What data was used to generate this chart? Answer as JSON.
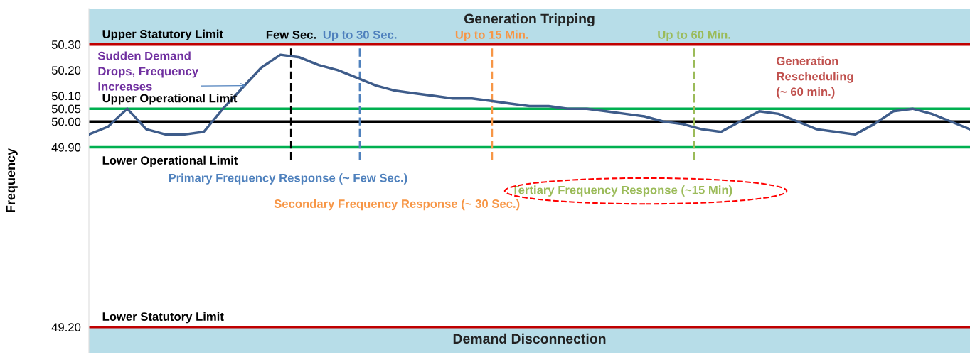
{
  "chart_data": {
    "type": "line",
    "ylabel": "Frequency",
    "categories": [
      null,
      null,
      null,
      null,
      null,
      null,
      null,
      null,
      null,
      null,
      null,
      null,
      null,
      null,
      null,
      null,
      null,
      null,
      null,
      null,
      null,
      null,
      null,
      null,
      null,
      null,
      null,
      null,
      null,
      null,
      null,
      null,
      null,
      null,
      null,
      null,
      null,
      null,
      null,
      null,
      null,
      null,
      null,
      null,
      null,
      null,
      null
    ],
    "series": [
      {
        "color": "#3e5c8a",
        "values": [
          49.95,
          49.98,
          50.05,
          49.97,
          49.95,
          49.95,
          49.96,
          50.05,
          50.13,
          50.21,
          50.26,
          50.25,
          50.22,
          50.2,
          50.17,
          50.14,
          50.12,
          50.11,
          50.1,
          50.09,
          50.09,
          50.08,
          50.07,
          50.06,
          50.06,
          50.05,
          50.05,
          50.04,
          50.03,
          50.02,
          50.0,
          49.99,
          49.97,
          49.96,
          50.0,
          50.04,
          50.03,
          50.0,
          49.97,
          49.96,
          49.95,
          49.99,
          50.04,
          50.05,
          50.03,
          50.0,
          49.97
        ]
      }
    ],
    "ylim": [
      49.1,
      50.44
    ],
    "yticks": [
      {
        "value": 49.2,
        "label": "49.20"
      },
      {
        "value": 49.9,
        "label": "49.90"
      },
      {
        "value": 50.0,
        "label": "50.00"
      },
      50.05,
      {
        "value": 50.1,
        "label": "50.10"
      },
      {
        "value": 50.2,
        "label": "50.20"
      },
      {
        "value": 50.3,
        "label": "50.30"
      }
    ],
    "tick_labels": "y",
    "grid": false,
    "legend": false,
    "marker": "none",
    "line_style": "solid",
    "ref_lines": [
      {
        "axis": "y",
        "value": 50.3,
        "label": "Upper Statutory Limit",
        "color": "#c00000",
        "line_style": "solid"
      },
      {
        "axis": "y",
        "value": 50.05,
        "label": "Upper Operational Limit",
        "color": "#00b050",
        "line_style": "solid"
      },
      {
        "axis": "y",
        "value": 50.0,
        "color": "#000000",
        "line_style": "solid"
      },
      {
        "axis": "y",
        "value": 49.9,
        "label": "Lower Operational Limit",
        "color": "#00b050",
        "line_style": "solid"
      },
      {
        "axis": "y",
        "value": 49.2,
        "label": "Lower Statutory Limit",
        "color": "#c00000",
        "line_style": "solid"
      }
    ],
    "bands": [
      {
        "axis": "y",
        "from": 50.3,
        "to": 50.44,
        "label": "Generation Tripping",
        "color": "#b7dde8"
      },
      {
        "axis": "y",
        "from": 49.1,
        "to": 49.2,
        "label": "Demand Disconnection",
        "color": "#b7dde8"
      }
    ],
    "annotations": [
      "Sudden Demand\nDrops, Frequency\nIncreases",
      "Generation\nRescheduling\n(~ 60 min.)",
      "Primary Frequency Response (~ Few Sec.)",
      "Secondary Frequency Response (~ 30 Sec.)",
      "Tertiary Frequency Response (~15 Min)",
      "Few Sec.",
      "Up to 30 Sec.",
      "Up to 15 Min.",
      "Up to 60 Min."
    ]
  }
}
